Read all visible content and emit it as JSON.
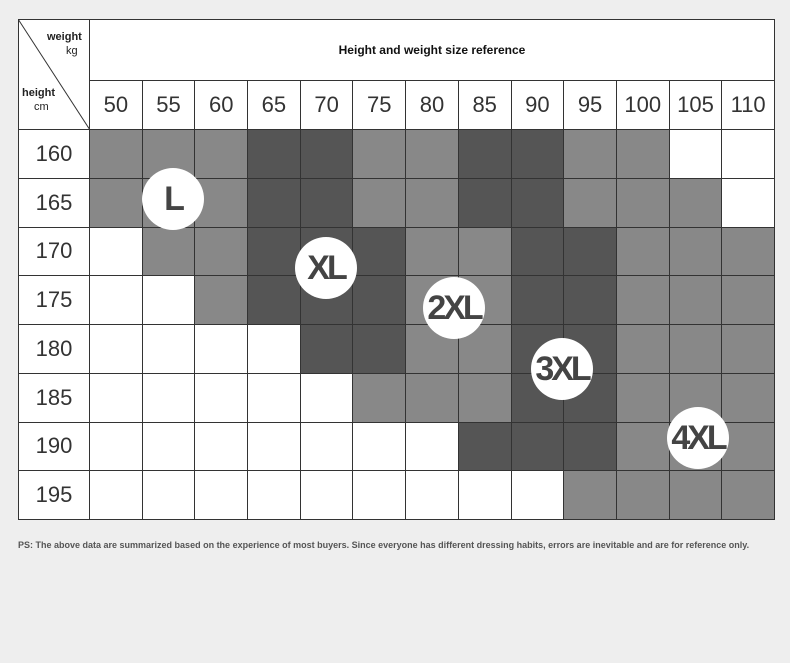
{
  "header": {
    "weight_label": "weight",
    "weight_unit": "kg",
    "height_label": "height",
    "height_unit": "cm",
    "title": "Height and weight size reference"
  },
  "table": {
    "columns": [
      50,
      55,
      60,
      65,
      70,
      75,
      80,
      85,
      90,
      95,
      100,
      105,
      110
    ],
    "rows": [
      {
        "height": 160,
        "colors": [
          "#888888",
          "#888888",
          "#888888",
          "#555555",
          "#555555",
          "#888888",
          "#888888",
          "#555555",
          "#555555",
          "#888888",
          "#888888",
          "#ffffff",
          "#ffffff"
        ]
      },
      {
        "height": 165,
        "colors": [
          "#888888",
          "#888888",
          "#888888",
          "#555555",
          "#555555",
          "#888888",
          "#888888",
          "#555555",
          "#555555",
          "#888888",
          "#888888",
          "#888888",
          "#ffffff"
        ]
      },
      {
        "height": 170,
        "colors": [
          "#ffffff",
          "#888888",
          "#888888",
          "#555555",
          "#555555",
          "#555555",
          "#888888",
          "#888888",
          "#555555",
          "#555555",
          "#888888",
          "#888888",
          "#888888"
        ]
      },
      {
        "height": 175,
        "colors": [
          "#ffffff",
          "#ffffff",
          "#888888",
          "#555555",
          "#555555",
          "#555555",
          "#888888",
          "#888888",
          "#555555",
          "#555555",
          "#888888",
          "#888888",
          "#888888"
        ]
      },
      {
        "height": 180,
        "colors": [
          "#ffffff",
          "#ffffff",
          "#ffffff",
          "#ffffff",
          "#555555",
          "#555555",
          "#888888",
          "#888888",
          "#555555",
          "#555555",
          "#888888",
          "#888888",
          "#888888"
        ]
      },
      {
        "height": 185,
        "colors": [
          "#ffffff",
          "#ffffff",
          "#ffffff",
          "#ffffff",
          "#ffffff",
          "#888888",
          "#888888",
          "#888888",
          "#555555",
          "#555555",
          "#888888",
          "#888888",
          "#888888"
        ]
      },
      {
        "height": 190,
        "colors": [
          "#ffffff",
          "#ffffff",
          "#ffffff",
          "#ffffff",
          "#ffffff",
          "#ffffff",
          "#ffffff",
          "#555555",
          "#555555",
          "#555555",
          "#888888",
          "#888888",
          "#888888"
        ]
      },
      {
        "height": 195,
        "colors": [
          "#ffffff",
          "#ffffff",
          "#ffffff",
          "#ffffff",
          "#ffffff",
          "#ffffff",
          "#ffffff",
          "#ffffff",
          "#ffffff",
          "#888888",
          "#888888",
          "#888888",
          "#888888"
        ]
      }
    ]
  },
  "badges": [
    {
      "label": "L"
    },
    {
      "label": "XL"
    },
    {
      "label": "2XL"
    },
    {
      "label": "3XL"
    },
    {
      "label": "4XL"
    }
  ],
  "footnote": "PS: The above data are summarized based on the experience of most buyers. Since everyone has different dressing habits, errors are inevitable and are for reference only."
}
